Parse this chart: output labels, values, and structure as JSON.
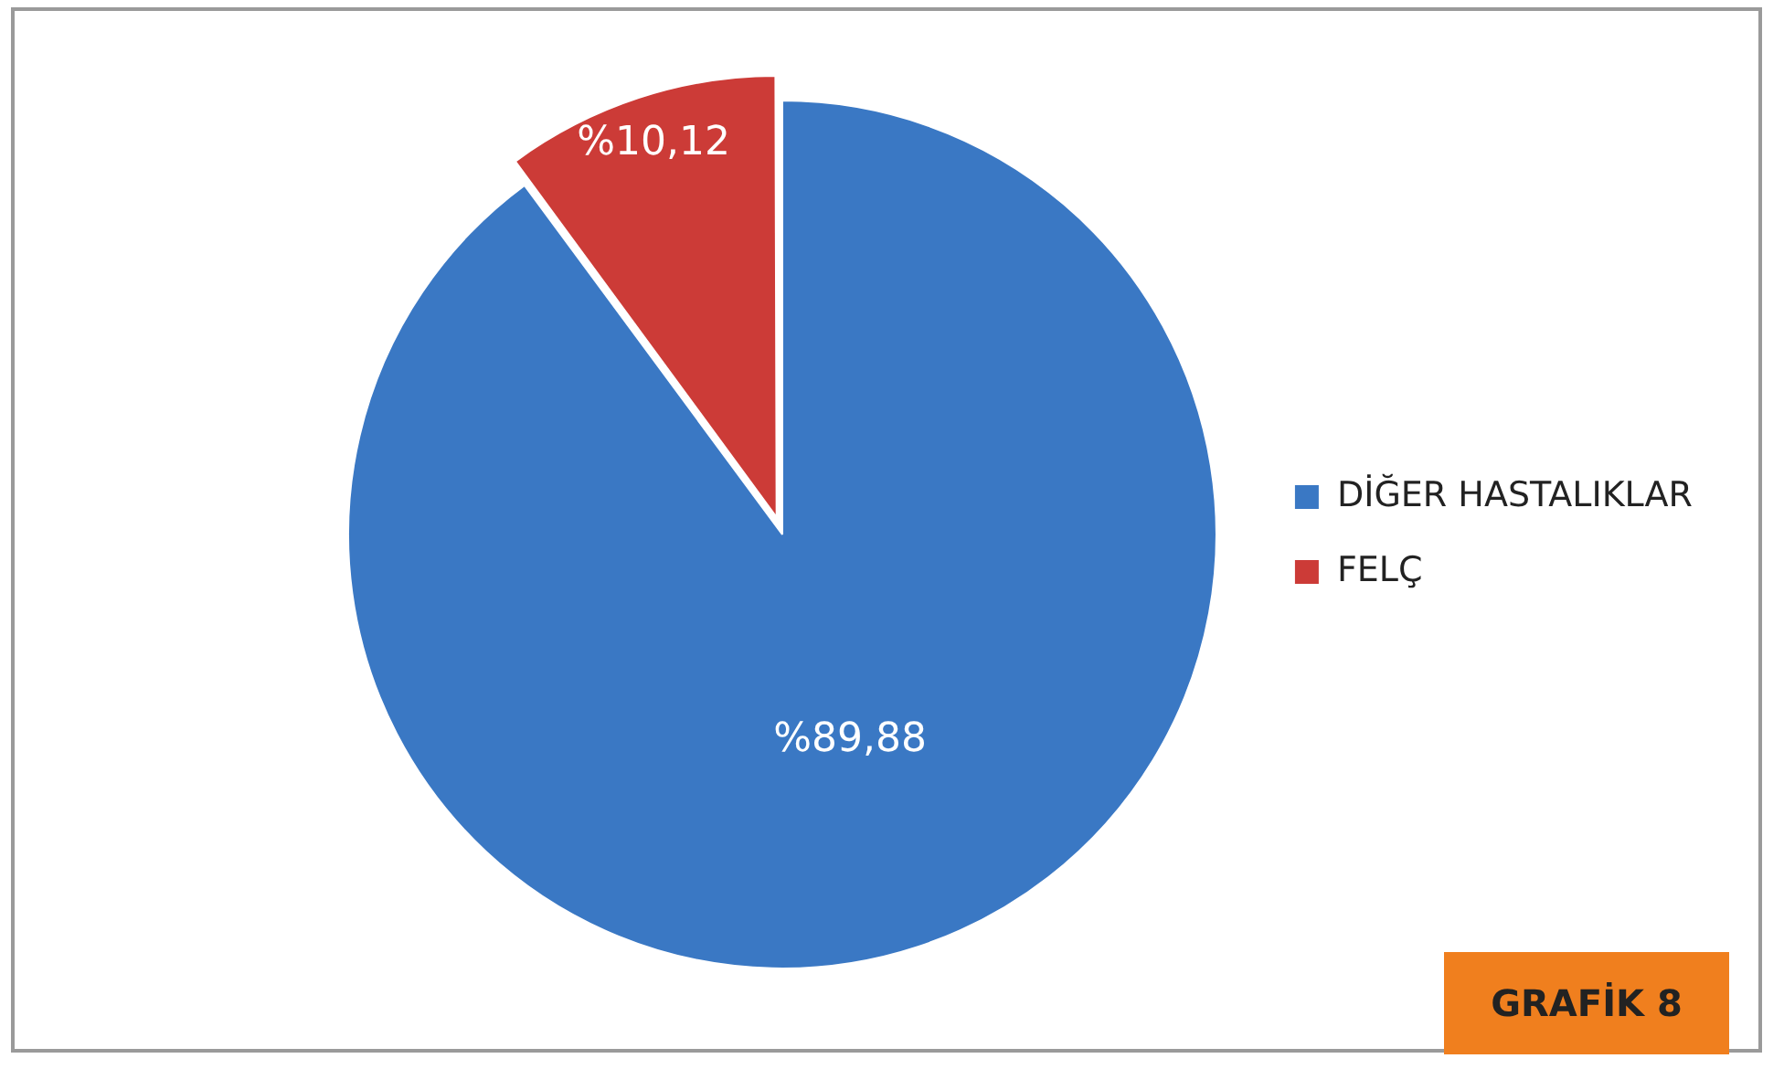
{
  "chart_data": {
    "type": "pie",
    "categories": [
      "DİĞER HASTALIKLAR",
      "FELÇ"
    ],
    "values": [
      89.88,
      10.12
    ],
    "colors": [
      "#3a78c4",
      "#cc3b37"
    ],
    "value_labels": [
      "%89,88",
      "%10,12"
    ],
    "legend": "right",
    "annotations": [
      "GRAFİK 8"
    ]
  }
}
